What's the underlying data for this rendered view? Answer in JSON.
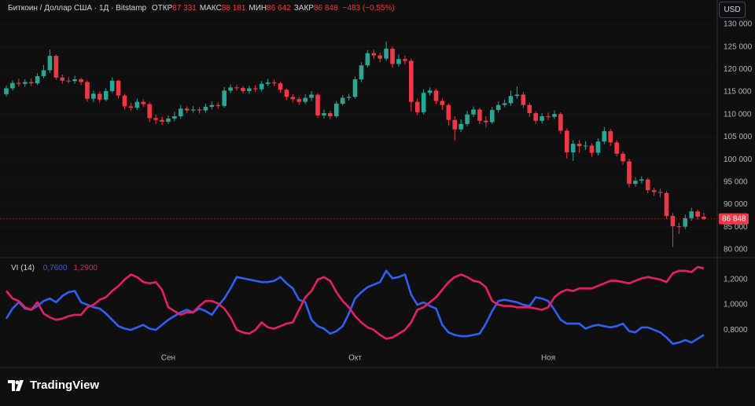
{
  "chart_data": [
    {
      "type": "candlestick",
      "title": "Биткоин / Доллар США · 1Д · Bitstamp",
      "legend": [
        {
          "label": "ОТКР",
          "value": "87 331"
        },
        {
          "label": "МАКС",
          "value": "88 181"
        },
        {
          "label": "МИН",
          "value": "86 642"
        },
        {
          "label": "ЗАКР",
          "value": "86 848"
        }
      ],
      "change": "−483 (−0,55%)",
      "currency": "USD",
      "last_price_label": "86 848",
      "brand": "TradingView",
      "up_color": "#22ab94",
      "down_color": "#f23645",
      "categories": [
        null,
        null,
        null,
        null,
        null,
        null,
        null,
        null,
        null,
        null,
        null,
        null,
        null,
        null,
        null,
        null,
        null,
        null,
        null,
        null,
        null,
        null,
        null,
        null,
        null,
        null,
        "Сен",
        null,
        null,
        null,
        null,
        null,
        null,
        null,
        null,
        null,
        null,
        null,
        null,
        null,
        null,
        null,
        null,
        null,
        null,
        null,
        null,
        null,
        null,
        null,
        null,
        null,
        null,
        null,
        null,
        null,
        "Окт",
        null,
        null,
        null,
        null,
        null,
        null,
        null,
        null,
        null,
        null,
        null,
        null,
        null,
        null,
        null,
        null,
        null,
        null,
        null,
        null,
        null,
        null,
        null,
        null,
        null,
        null,
        null,
        null,
        null,
        null,
        "Ноя",
        null,
        null,
        null,
        null,
        null,
        null,
        null,
        null,
        null,
        null,
        null,
        null,
        null,
        null,
        null,
        null,
        null,
        null,
        null,
        null,
        null,
        null,
        null,
        null,
        null
      ],
      "open": [
        114500,
        115800,
        117000,
        116800,
        117200,
        116900,
        118500,
        119800,
        123000,
        118200,
        117500,
        117400,
        117800,
        117200,
        113500,
        114600,
        113300,
        115200,
        117500,
        114200,
        111800,
        111500,
        112800,
        112300,
        109200,
        108800,
        108400,
        109100,
        109600,
        111300,
        110900,
        111100,
        110900,
        111700,
        112100,
        111900,
        115300,
        116000,
        115900,
        115200,
        115800,
        115600,
        116800,
        117100,
        116900,
        115500,
        113900,
        113400,
        112800,
        113700,
        114400,
        109800,
        110300,
        109600,
        112400,
        113700,
        113900,
        117800,
        120900,
        123600,
        123100,
        122400,
        124600,
        121200,
        122300,
        121900,
        112800,
        110500,
        114800,
        115300,
        113000,
        112100,
        108800,
        106700,
        107900,
        110000,
        111100,
        108600,
        108300,
        111000,
        112100,
        112500,
        114100,
        114400,
        112100,
        110300,
        108600,
        109600,
        109500,
        110100,
        106400,
        101600,
        103500,
        103000,
        103100,
        101500,
        104000,
        106300,
        103800,
        101300,
        99600,
        94600,
        95300,
        95600,
        93200,
        92800,
        92600,
        87500,
        85200,
        85100,
        87000,
        88500,
        87331
      ],
      "high": [
        116400,
        117600,
        117900,
        117800,
        118000,
        119200,
        121000,
        124400,
        123300,
        118900,
        118300,
        118600,
        118200,
        117500,
        115300,
        115100,
        115800,
        118200,
        117700,
        114600,
        112600,
        113500,
        113400,
        112700,
        110000,
        109500,
        109800,
        110600,
        112100,
        111800,
        111900,
        111600,
        112400,
        112900,
        112700,
        116100,
        116700,
        116600,
        116300,
        116400,
        116500,
        117400,
        117900,
        117700,
        117300,
        115800,
        114500,
        113900,
        114500,
        115200,
        114700,
        111100,
        110800,
        113000,
        114300,
        114600,
        118400,
        121600,
        124300,
        124400,
        123700,
        126200,
        125100,
        123300,
        123000,
        122400,
        113500,
        115600,
        116000,
        115700,
        113600,
        112500,
        109600,
        108900,
        110800,
        111800,
        111500,
        109600,
        111700,
        112900,
        113300,
        115300,
        116200,
        115000,
        112600,
        110700,
        110300,
        110400,
        110900,
        110500,
        106900,
        104300,
        104300,
        104100,
        103600,
        104700,
        107200,
        106800,
        104300,
        101800,
        100200,
        96100,
        96300,
        96000,
        93800,
        93500,
        93000,
        88100,
        86000,
        87800,
        89300,
        88900,
        88181
      ],
      "low": [
        114000,
        115300,
        116200,
        116100,
        116300,
        116500,
        118000,
        119200,
        117700,
        116800,
        116900,
        116800,
        116500,
        112800,
        112700,
        112600,
        112900,
        114800,
        113600,
        111100,
        110900,
        111000,
        111600,
        108300,
        107900,
        107700,
        107900,
        108500,
        109000,
        110300,
        110400,
        110200,
        110400,
        111100,
        111300,
        111500,
        114800,
        115300,
        114700,
        114600,
        115000,
        115100,
        116300,
        116300,
        114800,
        113200,
        112700,
        112100,
        112300,
        113000,
        109200,
        109100,
        108900,
        109300,
        112000,
        113100,
        113500,
        117200,
        120400,
        122300,
        121600,
        121900,
        120400,
        120600,
        121100,
        110700,
        109800,
        110000,
        114200,
        112300,
        111000,
        107600,
        104200,
        106100,
        107400,
        109400,
        107900,
        107100,
        107900,
        110400,
        111600,
        111900,
        113500,
        111400,
        109500,
        107900,
        108000,
        108800,
        109000,
        105700,
        100200,
        99700,
        101500,
        102200,
        100600,
        100900,
        103400,
        103000,
        100700,
        98900,
        93800,
        94000,
        94700,
        92500,
        91900,
        91600,
        86800,
        80600,
        83500,
        84600,
        86400,
        86700,
        86642
      ],
      "close": [
        115800,
        117000,
        116800,
        117200,
        116900,
        118500,
        119800,
        123000,
        118200,
        117500,
        117400,
        117800,
        117200,
        113500,
        114600,
        113300,
        115200,
        117500,
        114200,
        111800,
        111500,
        112800,
        112300,
        109200,
        108800,
        108400,
        109100,
        109600,
        111300,
        110900,
        111100,
        110900,
        111700,
        112100,
        111900,
        115300,
        116000,
        115900,
        115200,
        115800,
        115600,
        116800,
        117100,
        116900,
        115500,
        113900,
        113400,
        112800,
        113700,
        114400,
        109800,
        110300,
        109600,
        112400,
        113700,
        113900,
        117800,
        120900,
        123600,
        123100,
        122400,
        124600,
        121200,
        122300,
        121900,
        112800,
        110500,
        114800,
        115300,
        113000,
        112100,
        108800,
        106700,
        107900,
        110000,
        111100,
        108600,
        108300,
        111000,
        112100,
        112500,
        114100,
        114400,
        112100,
        110300,
        108600,
        109600,
        109500,
        110100,
        106400,
        101600,
        103500,
        103000,
        103100,
        101500,
        104000,
        106300,
        103800,
        101300,
        99600,
        94600,
        95300,
        95600,
        93200,
        92800,
        92600,
        87500,
        85200,
        85100,
        87000,
        88500,
        87331,
        86848
      ],
      "ylim": [
        78780,
        131040
      ],
      "yticks": [
        {
          "value": 80000,
          "label": "80 000"
        },
        {
          "value": 85000,
          "label": "85 000"
        },
        {
          "value": 90000,
          "label": "90 000"
        },
        {
          "value": 95000,
          "label": "95 000"
        },
        {
          "value": 100000,
          "label": "100 000"
        },
        {
          "value": 105000,
          "label": "105 000"
        },
        {
          "value": 110000,
          "label": "110 000"
        },
        {
          "value": 115000,
          "label": "115 000"
        },
        {
          "value": 120000,
          "label": "120 000"
        },
        {
          "value": 125000,
          "label": "125 000"
        },
        {
          "value": 130000,
          "label": "130 000"
        }
      ],
      "grid": true
    },
    {
      "type": "line",
      "title": "VI (14)",
      "series": [
        {
          "color": "#2f5ff5",
          "last_label": "0,7600",
          "values": [
            0.89,
            0.97,
            1.02,
            0.97,
            0.96,
            0.99,
            1.03,
            1.05,
            1.02,
            1.07,
            1.1,
            1.11,
            1.02,
            1.0,
            0.98,
            0.97,
            0.93,
            0.88,
            0.83,
            0.81,
            0.8,
            0.82,
            0.84,
            0.81,
            0.8,
            0.84,
            0.88,
            0.91,
            0.94,
            0.96,
            0.94,
            0.97,
            0.95,
            0.92,
            0.99,
            1.05,
            1.13,
            1.22,
            1.21,
            1.2,
            1.19,
            1.18,
            1.18,
            1.19,
            1.22,
            1.17,
            1.13,
            1.04,
            1.02,
            0.88,
            0.83,
            0.81,
            0.77,
            0.79,
            0.83,
            0.93,
            1.05,
            1.1,
            1.14,
            1.16,
            1.18,
            1.27,
            1.21,
            1.22,
            1.24,
            1.08,
            1.0,
            1.02,
            0.99,
            0.97,
            0.84,
            0.78,
            0.76,
            0.75,
            0.75,
            0.76,
            0.77,
            0.85,
            0.95,
            1.03,
            1.04,
            1.03,
            1.02,
            1.0,
            0.99,
            1.06,
            1.05,
            1.03,
            0.96,
            0.88,
            0.85,
            0.85,
            0.85,
            0.81,
            0.83,
            0.84,
            0.83,
            0.82,
            0.83,
            0.85,
            0.79,
            0.78,
            0.82,
            0.82,
            0.8,
            0.78,
            0.74,
            0.69,
            0.7,
            0.72,
            0.7,
            0.73,
            0.76
          ]
        },
        {
          "color": "#e91e63",
          "last_label": "1,2900",
          "values": [
            1.11,
            1.05,
            1.03,
            0.98,
            0.96,
            1.02,
            0.93,
            0.9,
            0.88,
            0.89,
            0.91,
            0.92,
            0.92,
            0.98,
            1.0,
            1.04,
            1.06,
            1.11,
            1.15,
            1.2,
            1.24,
            1.22,
            1.18,
            1.17,
            1.18,
            1.12,
            0.98,
            0.95,
            0.92,
            0.94,
            0.94,
            0.99,
            1.03,
            1.03,
            1.01,
            0.97,
            0.9,
            0.8,
            0.78,
            0.77,
            0.8,
            0.86,
            0.82,
            0.81,
            0.83,
            0.85,
            0.86,
            0.96,
            1.06,
            1.11,
            1.2,
            1.22,
            1.19,
            1.1,
            1.03,
            0.98,
            0.91,
            0.86,
            0.82,
            0.8,
            0.76,
            0.73,
            0.74,
            0.77,
            0.8,
            0.86,
            0.96,
            0.98,
            1.02,
            1.06,
            1.12,
            1.18,
            1.22,
            1.24,
            1.22,
            1.19,
            1.18,
            1.14,
            1.03,
            1.0,
            0.99,
            0.99,
            0.98,
            0.98,
            0.98,
            0.97,
            0.96,
            0.98,
            1.06,
            1.1,
            1.12,
            1.11,
            1.13,
            1.13,
            1.13,
            1.15,
            1.17,
            1.19,
            1.19,
            1.18,
            1.17,
            1.19,
            1.21,
            1.22,
            1.21,
            1.2,
            1.18,
            1.25,
            1.27,
            1.27,
            1.26,
            1.3,
            1.29
          ]
        }
      ],
      "ylim": [
        0.52,
        1.3625
      ],
      "yticks": [
        {
          "value": 0.8,
          "label": "0,8000"
        },
        {
          "value": 1.0,
          "label": "1,0000"
        },
        {
          "value": 1.2,
          "label": "1,2000"
        }
      ]
    }
  ]
}
